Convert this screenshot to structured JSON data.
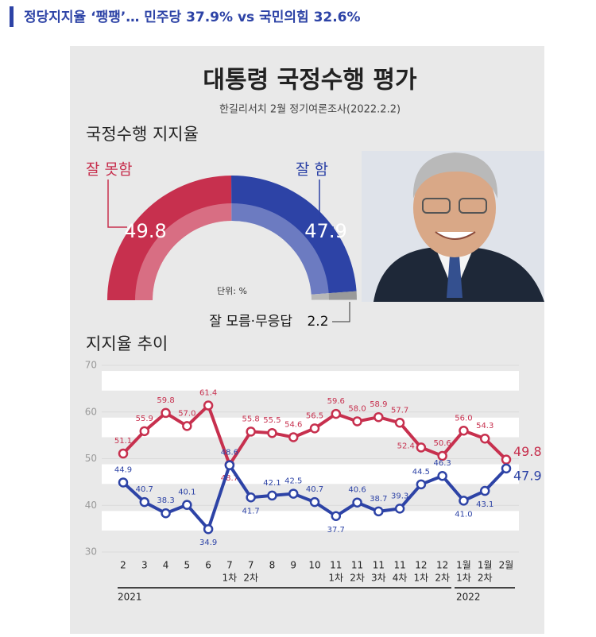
{
  "header": {
    "title": "정당지지율 ‘팽팽’… 민주당 37.9% vs 국민의힘 32.6%"
  },
  "infographic": {
    "title": "대통령 국정수행 평가",
    "subtitle": "한길리서치 2월 정기여론조사(2022.2.2)"
  },
  "chart_data": [
    {
      "type": "donut",
      "title": "국정수행 지지율",
      "unit": "단위: %",
      "categories": [
        "잘 못함",
        "잘 함",
        "잘 모름·무응답"
      ],
      "values": [
        49.8,
        47.9,
        2.2
      ],
      "colors": [
        "#c7304e",
        "#2d43a6",
        "#9a9a9a"
      ]
    },
    {
      "type": "line",
      "title": "지지율 추이",
      "categories": [
        "2",
        "3",
        "4",
        "5",
        "6",
        "7",
        "7",
        "8",
        "9",
        "10",
        "11",
        "11",
        "11",
        "11",
        "12",
        "12",
        "1월",
        "1월",
        "2월"
      ],
      "sublabels": [
        null,
        null,
        null,
        null,
        null,
        "1차",
        "2차",
        null,
        null,
        null,
        "1차",
        "2차",
        "3차",
        "4차",
        "1차",
        "2차",
        "1차",
        "2차",
        null
      ],
      "year_labels": [
        "2021",
        "2022"
      ],
      "series": [
        {
          "color": "#c7304e",
          "values": [
            51.1,
            55.9,
            59.8,
            57.0,
            61.4,
            48.7,
            55.8,
            55.5,
            54.6,
            56.5,
            59.6,
            58.0,
            58.9,
            57.7,
            52.4,
            50.6,
            56.0,
            54.3,
            49.8
          ],
          "value_labels": [
            "51.1",
            "55.9",
            "59.8",
            "57.0",
            "61.4",
            "48.7",
            "55.8",
            "55.5",
            "54.6",
            "56.5",
            "59.6",
            "58.0",
            "58.9",
            "57.7",
            "52.4",
            "50.6",
            "56.0",
            "54.3",
            "49.8"
          ]
        },
        {
          "color": "#2d43a6",
          "values": [
            44.9,
            40.7,
            38.3,
            40.1,
            34.9,
            48.6,
            41.7,
            42.1,
            42.5,
            40.7,
            37.7,
            40.6,
            38.7,
            39.3,
            44.5,
            46.3,
            41.0,
            43.1,
            47.9
          ],
          "value_labels": [
            "44.9",
            "40.7",
            "38.3",
            "40.1",
            "34.9",
            "48.6",
            "41.7",
            "42.1",
            "42.5",
            "40.7",
            "37.7",
            "40.6",
            "38.7",
            "39.3",
            "44.5",
            "46.3",
            "41.0",
            "43.1",
            "47.9"
          ]
        }
      ],
      "ylim": [
        30,
        70
      ],
      "yticks": [
        30,
        40,
        50,
        60,
        70
      ],
      "grid": true
    }
  ]
}
